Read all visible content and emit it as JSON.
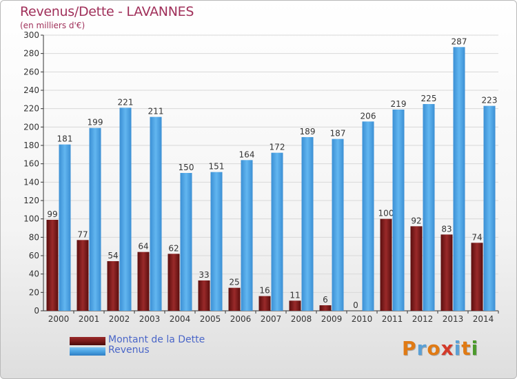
{
  "header": {
    "title": "Revenus/Dette - LAVANNES",
    "subtitle": "(en milliers d'€)"
  },
  "logo": {
    "text": "Proxiti",
    "colors": [
      "#e07a14",
      "#5aa0d6",
      "#e07a14",
      "#d33a2a",
      "#5aa0d6",
      "#e07a14",
      "#4b9a2c"
    ]
  },
  "colors": {
    "title": "#a0305a",
    "legend_text": "#4a66c8",
    "dette": "#7a1a1a",
    "revenus": "#4ba3e3",
    "axis": "#333333",
    "grid": "#d8d8d8"
  },
  "chart_data": {
    "type": "bar",
    "title": "Revenus/Dette - LAVANNES",
    "subtitle": "(en milliers d'€)",
    "categories": [
      "2000",
      "2001",
      "2002",
      "2003",
      "2004",
      "2005",
      "2006",
      "2007",
      "2008",
      "2009",
      "2010",
      "2011",
      "2012",
      "2013",
      "2014"
    ],
    "series": [
      {
        "name": "Montant de la Dette",
        "color": "#7a1a1a",
        "values": [
          99,
          77,
          54,
          64,
          62,
          33,
          25,
          16,
          11,
          6,
          0,
          100,
          92,
          83,
          74
        ]
      },
      {
        "name": "Revenus",
        "color": "#4ba3e3",
        "values": [
          181,
          199,
          221,
          211,
          150,
          151,
          164,
          172,
          189,
          187,
          206,
          219,
          225,
          287,
          223
        ]
      }
    ],
    "ylim": [
      0,
      300
    ],
    "yticks": [
      0,
      20,
      40,
      60,
      80,
      100,
      120,
      140,
      160,
      180,
      200,
      220,
      240,
      260,
      280,
      300
    ],
    "grid": true,
    "legend_position": "bottom-left"
  }
}
